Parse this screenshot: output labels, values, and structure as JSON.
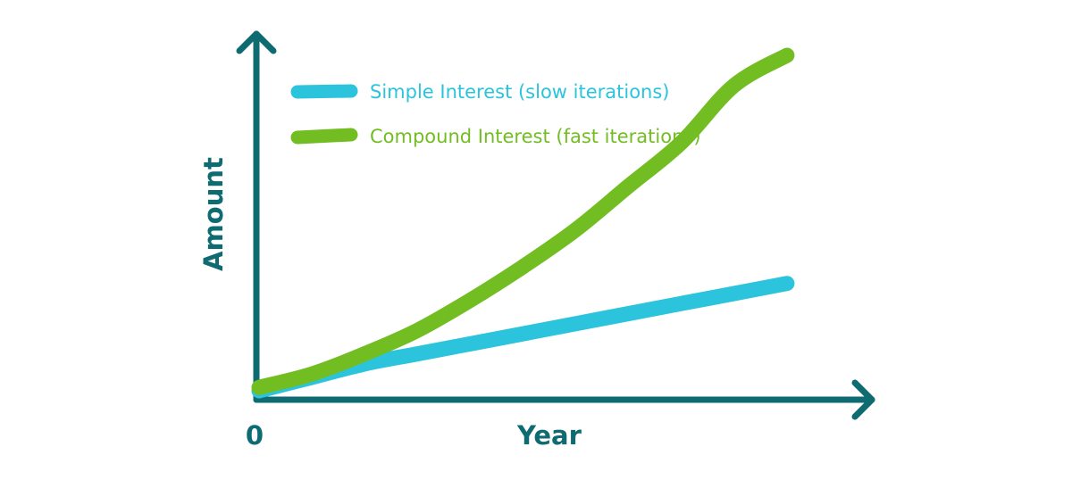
{
  "chart_data": {
    "type": "line",
    "xlabel": "Year",
    "ylabel": "Amount",
    "x_tick_labels": [
      "0"
    ],
    "x": [
      0,
      1,
      2,
      3,
      4,
      5,
      6,
      7,
      8,
      9,
      10
    ],
    "xlim": [
      0,
      11
    ],
    "ylim": [
      0,
      10
    ],
    "grid": false,
    "legend_position": "top-left",
    "series": [
      {
        "name": "Simple Interest (slow iterations)",
        "color": "#2bc4dc",
        "values": [
          0.0,
          0.4,
          0.8,
          1.1,
          1.4,
          1.7,
          2.0,
          2.3,
          2.6,
          2.9,
          3.2
        ]
      },
      {
        "name": "Compound Interest (fast iterations)",
        "color": "#72be22",
        "values": [
          0.1,
          0.5,
          1.1,
          1.8,
          2.7,
          3.7,
          4.8,
          6.1,
          7.4,
          9.1,
          10.0
        ]
      }
    ],
    "axis_color": "#0f6b72"
  }
}
